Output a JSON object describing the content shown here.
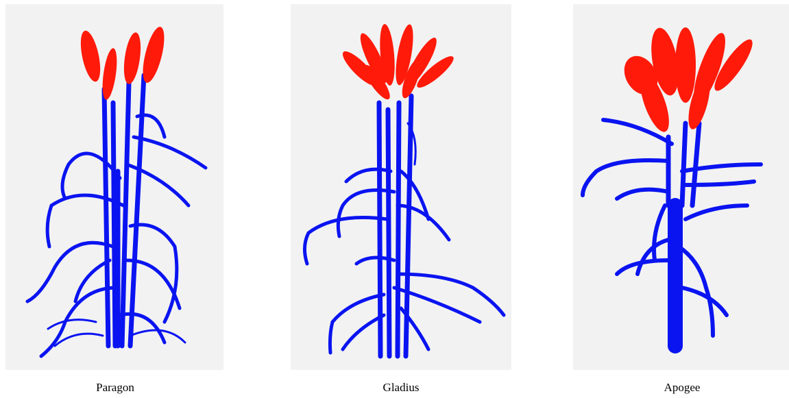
{
  "figure": {
    "panels": [
      {
        "caption": "Paragon"
      },
      {
        "caption": "Gladius"
      },
      {
        "caption": "Apogee"
      }
    ]
  }
}
